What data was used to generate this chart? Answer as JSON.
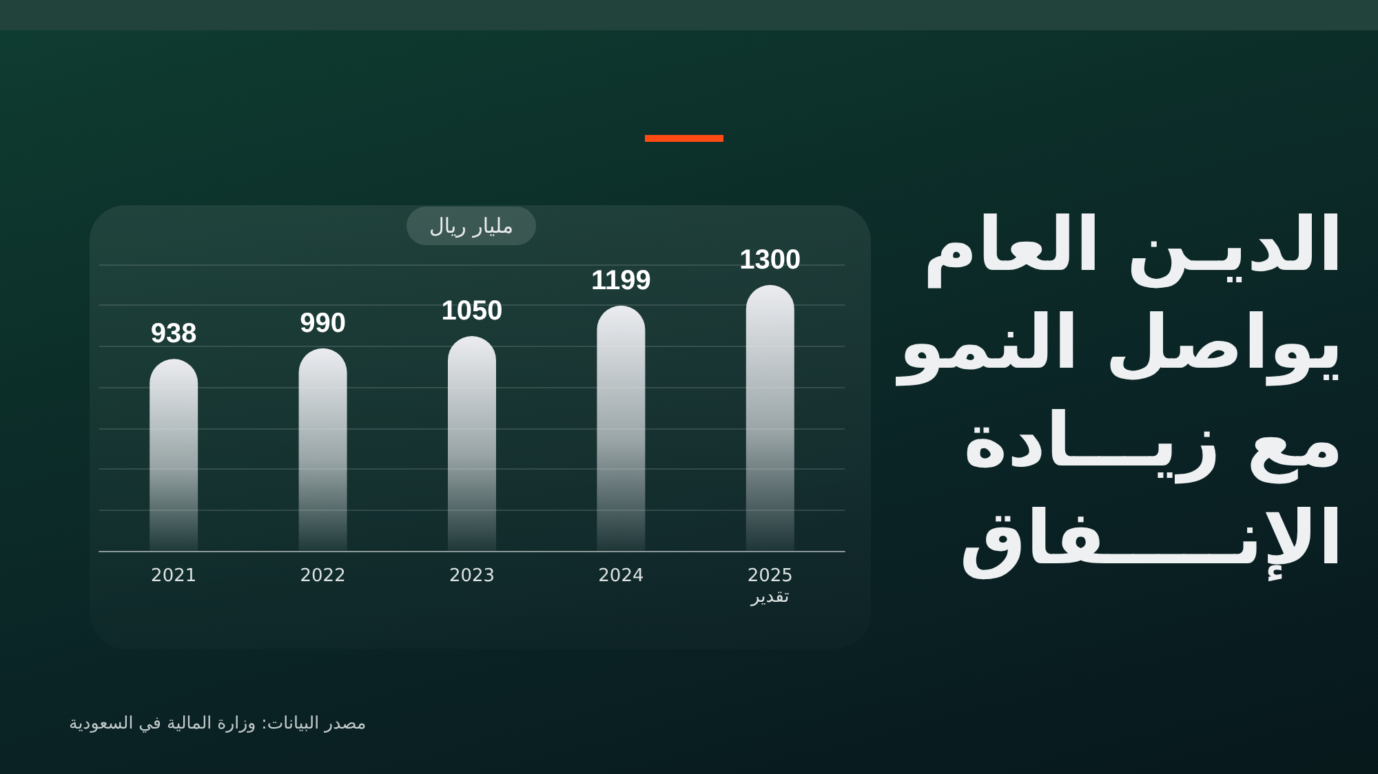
{
  "chart_data": {
    "type": "bar",
    "title": "الديـن العام\nيواصل النمو\nمع زيـــادة\nالإنـــــفاق",
    "ylabel": "مليار ريال",
    "categories": [
      "2021",
      "2022",
      "2023",
      "2024",
      "2025\nتقدير"
    ],
    "values": [
      938,
      990,
      1050,
      1199,
      1300
    ],
    "color": "#ebecf0",
    "data_labels": true,
    "grid": "y",
    "tick_labels": "x",
    "annotations": [
      "مصدر البيانات: وزارة المالية في السعودية"
    ]
  }
}
